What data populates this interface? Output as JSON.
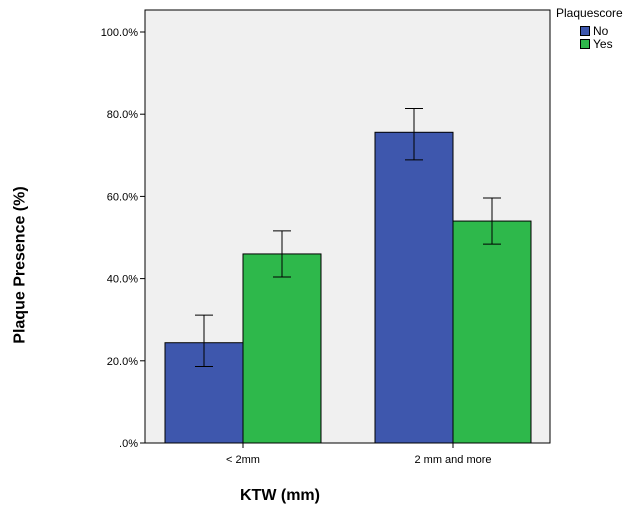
{
  "chart_data": {
    "type": "bar",
    "xlabel": "KTW (mm)",
    "ylabel": "Plaque Presence (%)",
    "categories": [
      "< 2mm",
      "2 mm and more"
    ],
    "ylim": [
      0,
      100
    ],
    "yticks": [
      0,
      20,
      40,
      60,
      80,
      100
    ],
    "ytick_labels": [
      ".0%",
      "20.0%",
      "40.0%",
      "60.0%",
      "80.0%",
      "100.0%"
    ],
    "legend_title": "Plaquescore",
    "legend_position": "top-right, outside plot",
    "grid": false,
    "plot_background": "#f0f0f0",
    "series": [
      {
        "name": "No",
        "color": "#3e57ad",
        "values": [
          24.4,
          75.6
        ],
        "error_low": [
          18.6,
          68.9
        ],
        "error_high": [
          31.1,
          81.4
        ]
      },
      {
        "name": "Yes",
        "color": "#2eb84b",
        "values": [
          46.0,
          54.0
        ],
        "error_low": [
          40.4,
          48.4
        ],
        "error_high": [
          51.6,
          59.6
        ]
      }
    ]
  }
}
